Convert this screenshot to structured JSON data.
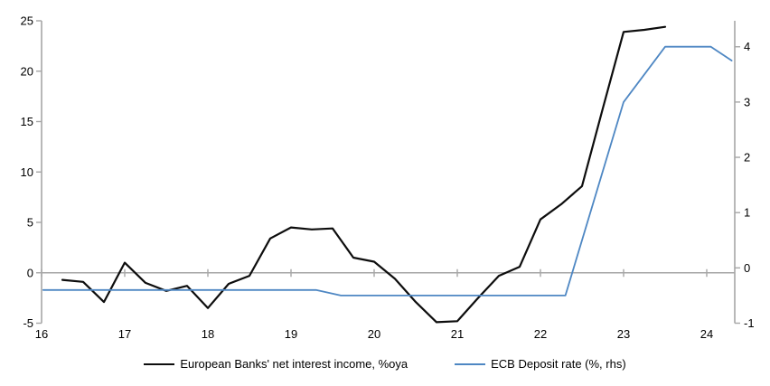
{
  "chart_data": {
    "type": "line",
    "title": "",
    "x_axis": {
      "ticks": [
        "16",
        "17",
        "18",
        "19",
        "20",
        "21",
        "22",
        "23",
        "24"
      ],
      "min": 16,
      "max": 24.34
    },
    "left_axis": {
      "ticks": [
        25,
        20,
        15,
        10,
        5,
        0,
        -5
      ],
      "min": -5,
      "max": 25
    },
    "right_axis": {
      "ticks": [
        4,
        3,
        2,
        1,
        0,
        -1
      ],
      "min": -1,
      "max": 4.47
    },
    "grid": "zero-line-only",
    "legend_position": "bottom",
    "colors": {
      "axis": "#a6a6a6",
      "series_black": "#0d0d0d",
      "series_blue": "#4e87c3",
      "background": "#ffffff",
      "text": "#000000"
    },
    "series": [
      {
        "name": "European Banks' net interest income, %oya",
        "axis": "left",
        "color": "#0d0d0d",
        "width": 2.2,
        "x": [
          16.25,
          16.5,
          16.75,
          17.0,
          17.25,
          17.5,
          17.75,
          18.0,
          18.25,
          18.5,
          18.75,
          19.0,
          19.25,
          19.5,
          19.75,
          20.0,
          20.25,
          20.5,
          20.75,
          21.0,
          21.25,
          21.5,
          21.75,
          22.0,
          22.25,
          22.5,
          22.75,
          23.0,
          23.25,
          23.5
        ],
        "values": [
          -0.7,
          -0.9,
          -2.9,
          1.0,
          -1.0,
          -1.8,
          -1.3,
          -3.5,
          -1.1,
          -0.3,
          3.4,
          4.5,
          4.3,
          4.4,
          1.5,
          1.1,
          -0.6,
          -2.9,
          -4.9,
          -4.8,
          -2.5,
          -0.3,
          0.6,
          5.3,
          6.8,
          8.6,
          16.3,
          23.9,
          24.1,
          24.4
        ]
      },
      {
        "name": "ECB Deposit rate (%, rhs)",
        "axis": "right",
        "color": "#4e87c3",
        "width": 1.8,
        "x": [
          16.02,
          19.3,
          19.6,
          22.3,
          23.0,
          23.5,
          24.05,
          24.3
        ],
        "values": [
          -0.4,
          -0.4,
          -0.5,
          -0.5,
          3.0,
          4.0,
          4.0,
          3.75
        ]
      }
    ]
  }
}
